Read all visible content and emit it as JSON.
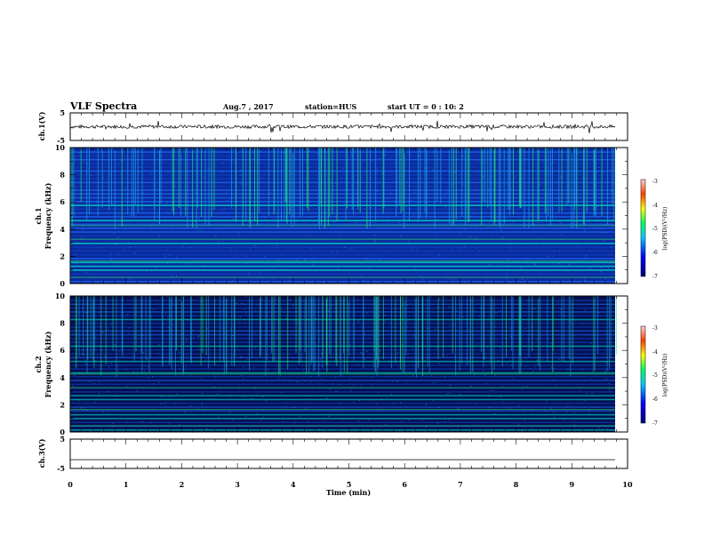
{
  "header": {
    "title": "VLF Spectra",
    "date": "Aug.7 , 2017",
    "station": "station=HUS",
    "start_ut": "start UT =  0 : 10: 2"
  },
  "panels": {
    "ch1_wave_label": "ch.1(V)",
    "ch1_spec_label": "ch.1",
    "ch2_spec_label": "ch.2",
    "ch3_wave_label": "ch.3(V)",
    "freq_label": "Frequency (kHz)",
    "x_label": "Time  (min)"
  },
  "colorbar": {
    "label": "log(PSD)(V²/Hz)",
    "ticks": [
      "-3",
      "-4",
      "-5",
      "-6",
      "-7"
    ]
  },
  "chart_data": [
    {
      "type": "line",
      "name": "ch1-waveform",
      "ylabel": "ch.1(V)",
      "ylim": [
        -5,
        5
      ],
      "yticks": [
        5,
        -5
      ],
      "xlim": [
        0,
        10
      ],
      "description_values": {
        "baseline_V": 0
      }
    },
    {
      "type": "heatmap",
      "name": "ch1-spectrogram",
      "ylabel": "Frequency (kHz)",
      "ylim": [
        0,
        10
      ],
      "yticks": [
        0,
        2,
        4,
        6,
        8,
        10
      ],
      "xlim": [
        0,
        10
      ],
      "color_range": [
        -7,
        -3
      ]
    },
    {
      "type": "heatmap",
      "name": "ch2-spectrogram",
      "ylabel": "Frequency (kHz)",
      "ylim": [
        0,
        10
      ],
      "yticks": [
        0,
        2,
        4,
        6,
        8,
        10
      ],
      "xlim": [
        0,
        10
      ],
      "color_range": [
        -7,
        -3
      ]
    },
    {
      "type": "line",
      "name": "ch3-waveform",
      "ylabel": "ch.3(V)",
      "ylim": [
        -5,
        5
      ],
      "yticks": [
        5,
        -5
      ],
      "xlim": [
        0,
        10
      ],
      "xlabel": "Time  (min)",
      "xticks": [
        0,
        1,
        2,
        3,
        4,
        5,
        6,
        7,
        8,
        9,
        10
      ],
      "description_values": {
        "baseline_V": -2
      }
    }
  ]
}
